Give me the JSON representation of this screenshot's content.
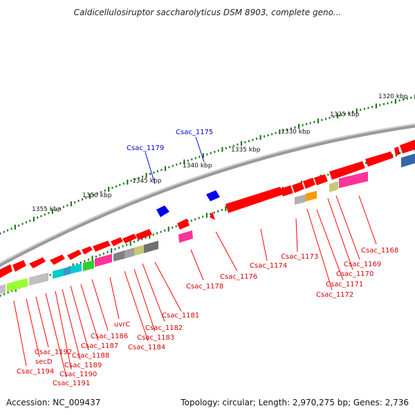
{
  "title": "Caldicellulosiruptor saccharolyticus DSM 8903, complete geno...",
  "footer": {
    "accession": "Accession: NC_009437",
    "topology": "Topology: circular; Length: 2,970,275 bp; Genes: 2,736"
  },
  "colors": {
    "forward_gene": "#ff0000",
    "reverse_gene": "#ff0000",
    "rna_gene": "#0000ff",
    "label_red": "#d40000",
    "label_blue": "#0000cc",
    "tick": "#1f7a1f",
    "backbone": "#808080"
  },
  "kbp_labels": [
    "1320 kbp",
    "1325 kbp",
    "1330 kbp",
    "1335 kbp",
    "1340 kbp",
    "1345 kbp",
    "1350 kbp",
    "1355 kbp"
  ],
  "gene_labels_blue": [
    "Csac_1175",
    "Csac_1179"
  ],
  "gene_labels_red": [
    "Csac_1168",
    "Csac_1169",
    "Csac_1170",
    "Csac_1171",
    "Csac_1172",
    "Csac_1173",
    "Csac_1174",
    "Csac_1176",
    "Csac_1178",
    "Csac_1181",
    "Csac_1182",
    "Csac_1183",
    "Csac_1184",
    "uvrC",
    "Csac_1186",
    "Csac_1187",
    "Csac_1188",
    "Csac_1189",
    "Csac_1190",
    "Csac_1191",
    "Csac_1192",
    "secD",
    "Csac_1194"
  ]
}
